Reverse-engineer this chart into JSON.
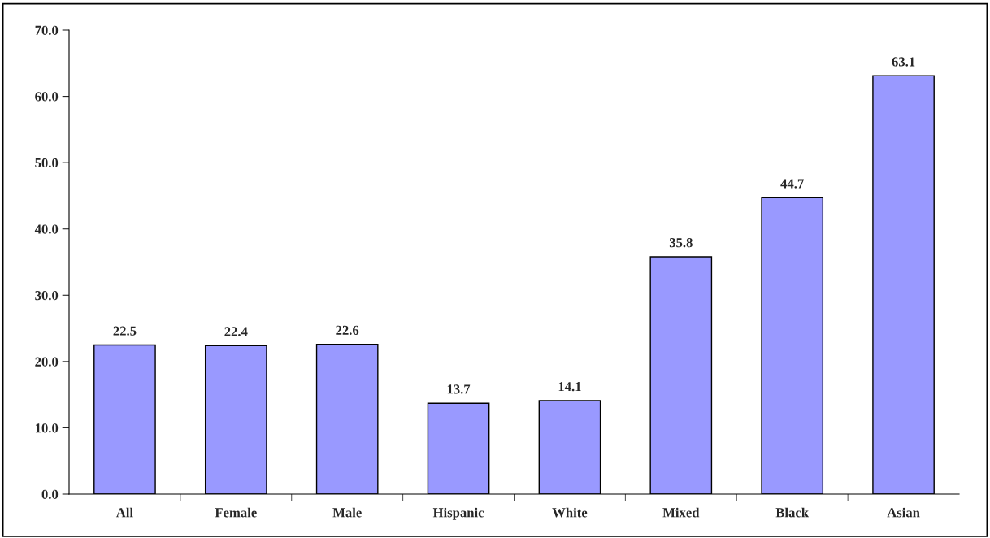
{
  "chart_data": {
    "type": "bar",
    "categories": [
      "All",
      "Female",
      "Male",
      "Hispanic",
      "White",
      "Mixed",
      "Black",
      "Asian"
    ],
    "values": [
      22.5,
      22.4,
      22.6,
      13.7,
      14.1,
      35.8,
      44.7,
      63.1
    ],
    "color": "#9999ff",
    "ylim": [
      0,
      70
    ],
    "yticks": [
      {
        "value": 0,
        "label": "0.0"
      },
      {
        "value": 10,
        "label": "10.0"
      },
      {
        "value": 20,
        "label": "20.0"
      },
      {
        "value": 30,
        "label": "30.0"
      },
      {
        "value": 40,
        "label": "40.0"
      },
      {
        "value": 50,
        "label": "50.0"
      },
      {
        "value": 60,
        "label": "60.0"
      },
      {
        "value": 70,
        "label": "70.0"
      }
    ],
    "data_labels": true,
    "grid": false,
    "legend": false
  }
}
